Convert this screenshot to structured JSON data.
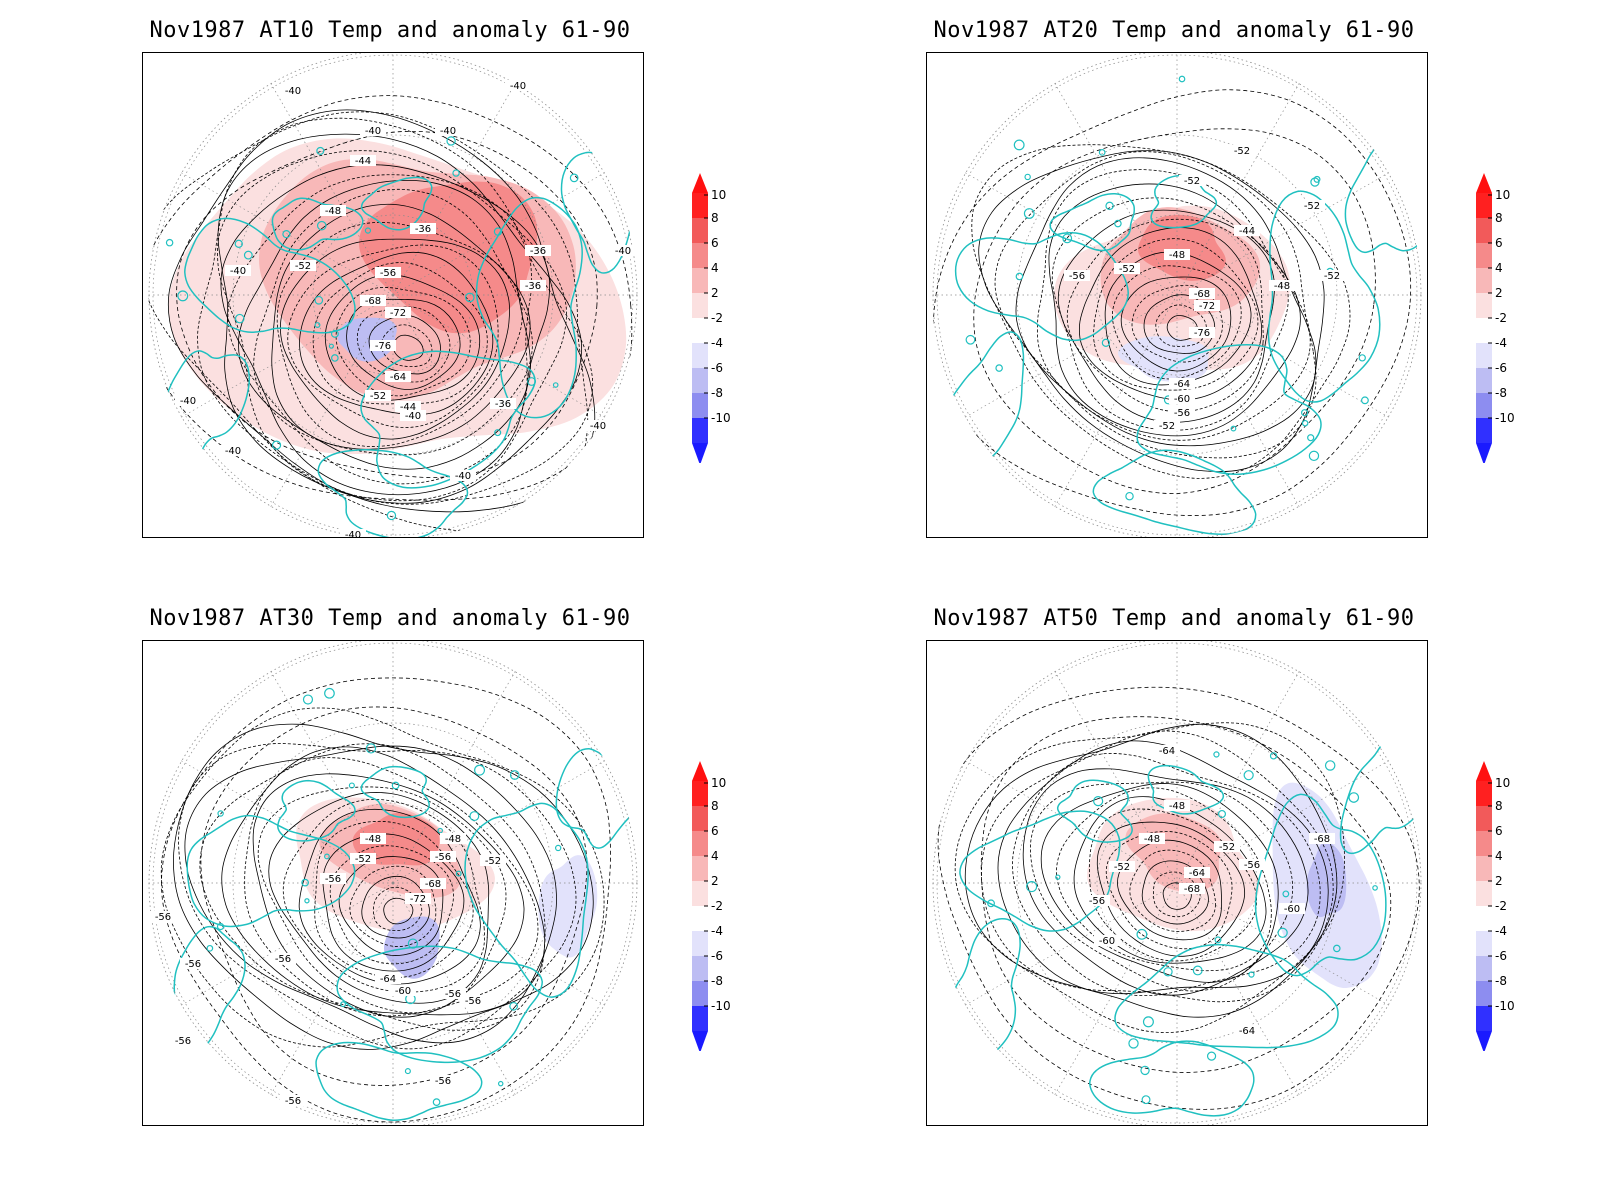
{
  "colors": {
    "coast": "#20c0c0",
    "contour": "#000000",
    "grid": "#8a8a8a",
    "frame": "#000000"
  },
  "colorbar": {
    "levels": [
      {
        "label": "10",
        "color": "#ff2020"
      },
      {
        "label": "8",
        "color": "#f25a5a"
      },
      {
        "label": "6",
        "color": "#f58a8a"
      },
      {
        "label": "4",
        "color": "#f8b8b8"
      },
      {
        "label": "2",
        "color": "#fbe0e0"
      },
      {
        "label": "-2",
        "color": "#ffffff"
      },
      {
        "label": "-4",
        "color": "#e2e2fb"
      },
      {
        "label": "-6",
        "color": "#bdbdf3"
      },
      {
        "label": "-8",
        "color": "#8d8df0"
      },
      {
        "label": "-10",
        "color": "#5a5af0"
      }
    ],
    "tip_top_color": "#ff1010",
    "tip_bottom_color": "#1a1aff",
    "last_band_color": "#3030ff"
  },
  "panels": [
    {
      "title": "Nov1987 AT10 Temp and anomaly 61-90",
      "contour_labels": [
        "-40",
        "-40",
        "-40",
        "-40",
        "-44",
        "-48",
        "-52",
        "-56",
        "-68",
        "-72",
        "-76",
        "-64",
        "-52",
        "-44",
        "-40",
        "-36",
        "-36",
        "-40",
        "-40",
        "-40",
        "-40",
        "-40",
        "-40",
        "-40",
        "-36",
        "-36"
      ],
      "anomaly": [
        {
          "sign": "pos",
          "level": 2
        },
        {
          "sign": "pos",
          "level": 4
        },
        {
          "sign": "pos",
          "level": 6
        },
        {
          "sign": "neg",
          "level": 4
        }
      ]
    },
    {
      "title": "Nov1987 AT20 Temp and anomaly 61-90",
      "contour_labels": [
        "-52",
        "-52",
        "-52",
        "-44",
        "-48",
        "-52",
        "-56",
        "-68",
        "-72",
        "-76",
        "-64",
        "-60",
        "-56",
        "-52",
        "-48",
        "-52"
      ],
      "anomaly": [
        {
          "sign": "pos",
          "level": 2
        },
        {
          "sign": "pos",
          "level": 4
        },
        {
          "sign": "pos",
          "level": 6
        },
        {
          "sign": "neg",
          "level": 2
        }
      ]
    },
    {
      "title": "Nov1987 AT30 Temp and anomaly 61-90",
      "contour_labels": [
        "-48",
        "-48",
        "-52",
        "-52",
        "-56",
        "-56",
        "-68",
        "-72",
        "-64",
        "-60",
        "-56",
        "-56",
        "-56",
        "-56",
        "-56",
        "-56",
        "-56",
        "-56"
      ],
      "anomaly": [
        {
          "sign": "pos",
          "level": 2
        },
        {
          "sign": "pos",
          "level": 4
        },
        {
          "sign": "pos",
          "level": 6
        },
        {
          "sign": "neg",
          "level": 2
        },
        {
          "sign": "neg",
          "level": 4
        }
      ]
    },
    {
      "title": "Nov1987 AT50 Temp and anomaly 61-90",
      "contour_labels": [
        "-64",
        "-48",
        "-48",
        "-52",
        "-52",
        "-56",
        "-56",
        "-64",
        "-68",
        "-60",
        "-60",
        "-68",
        "-64"
      ],
      "anomaly": [
        {
          "sign": "pos",
          "level": 2
        },
        {
          "sign": "pos",
          "level": 4
        },
        {
          "sign": "neg",
          "level": 2
        },
        {
          "sign": "neg",
          "level": 4
        }
      ]
    }
  ]
}
